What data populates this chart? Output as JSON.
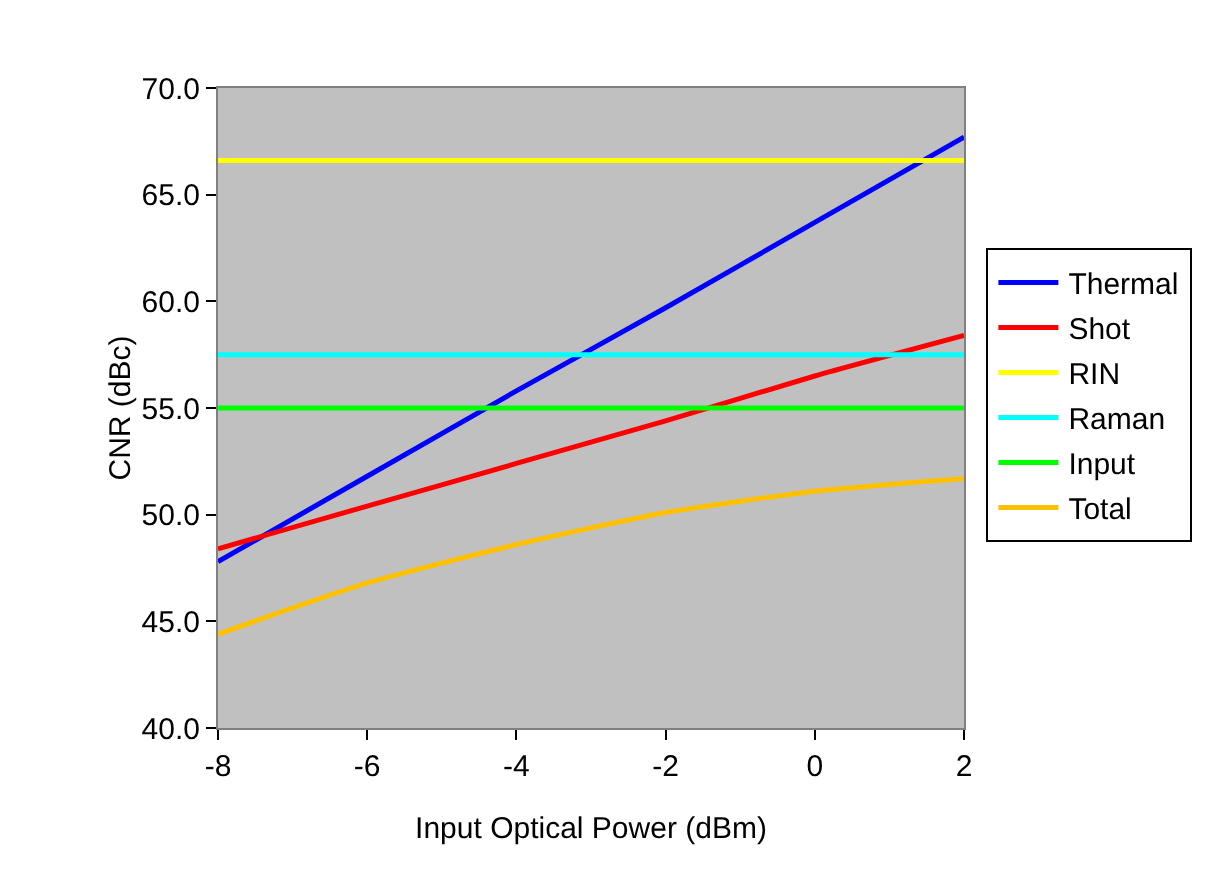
{
  "chart_data": {
    "type": "line",
    "xlabel": "Input Optical Power (dBm)",
    "ylabel": "CNR (dBc)",
    "x": [
      -8,
      -6,
      -4,
      -2,
      0,
      2
    ],
    "series": [
      {
        "name": "Thermal",
        "color": "#0000ff",
        "values": [
          47.8,
          51.8,
          55.8,
          59.7,
          63.7,
          67.7
        ]
      },
      {
        "name": "Shot",
        "color": "#ff0000",
        "values": [
          48.4,
          50.4,
          52.4,
          54.4,
          56.5,
          58.4
        ]
      },
      {
        "name": "RIN",
        "color": "#ffff00",
        "values": [
          66.6,
          66.6,
          66.6,
          66.6,
          66.6,
          66.6
        ]
      },
      {
        "name": "Raman",
        "color": "#00ffff",
        "values": [
          57.5,
          57.5,
          57.5,
          57.5,
          57.5,
          57.5
        ]
      },
      {
        "name": "Input",
        "color": "#00ff00",
        "values": [
          55.0,
          55.0,
          55.0,
          55.0,
          55.0,
          55.0
        ]
      },
      {
        "name": "Total",
        "color": "#ffc000",
        "values": [
          44.4,
          46.8,
          48.6,
          50.1,
          51.1,
          51.7
        ]
      }
    ],
    "xlim": [
      -8,
      2
    ],
    "xticks": [
      -8,
      -6,
      -4,
      -2,
      0,
      2
    ],
    "ylim": [
      40,
      70
    ],
    "yticks": [
      {
        "value": 40,
        "label": "40.0"
      },
      {
        "value": 45,
        "label": "45.0"
      },
      {
        "value": 50,
        "label": "50.0"
      },
      {
        "value": 55,
        "label": "55.0"
      },
      {
        "value": 60,
        "label": "60.0"
      },
      {
        "value": 65,
        "label": "65.0"
      },
      {
        "value": 70,
        "label": "70.0"
      }
    ],
    "grid": false,
    "legend": "right",
    "marker": "none",
    "line_style": "solid"
  }
}
